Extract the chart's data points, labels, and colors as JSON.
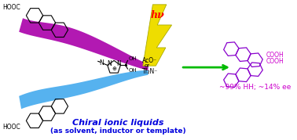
{
  "bg_color": "#ffffff",
  "title_line1": "Chiral ionic liquids",
  "title_line2": "(as solvent, inductor or template)",
  "title_color": "#0000dd",
  "result_text": "~99% HH; ~14% ee",
  "result_color": "#cc00cc",
  "hv_text": "hν",
  "hv_color": "#ff0000",
  "arrow_color": "#00bb00",
  "purple_sweep_color": "#aa00aa",
  "blue_sweep_color": "#44aaee",
  "lightning_yellow": "#eedd00",
  "lightning_outline": "#aaaa00",
  "cooh_color": "#cc00cc",
  "struct_color": "#8800cc",
  "anthracene_color": "#000000",
  "black": "#000000"
}
